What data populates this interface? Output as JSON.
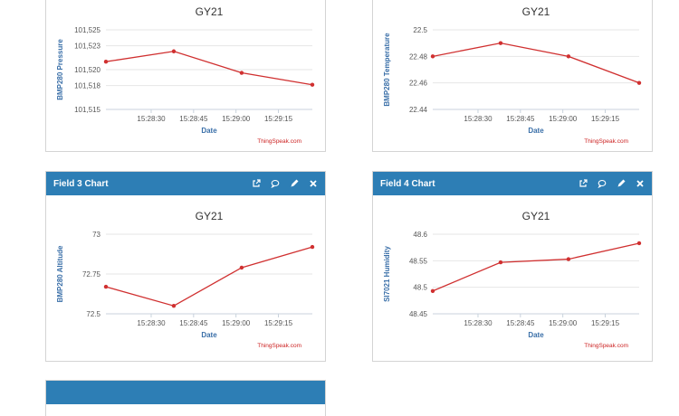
{
  "panels": [
    {
      "header": "",
      "chart_data": {
        "type": "line",
        "title": "GY21",
        "xlabel": "Date",
        "ylabel": "BMP280 Pressure",
        "ylim": [
          101515,
          101525
        ],
        "yticks": [
          101515,
          101518,
          101520,
          101523,
          101525
        ],
        "ytick_labels": [
          "101,515",
          "101,518",
          "101,520",
          "101,523",
          "101,525"
        ],
        "xlim": [
          "15:28:14",
          "15:29:27"
        ],
        "xticks": [
          "15:28:30",
          "15:28:45",
          "15:29:00",
          "15:29:15"
        ],
        "series": [
          {
            "x": [
              "15:28:14",
              "15:28:38",
              "15:29:02",
              "15:29:27"
            ],
            "values": [
              101521.0,
              101522.3,
              101519.6,
              101518.1
            ]
          }
        ],
        "credit": "ThingSpeak.com"
      }
    },
    {
      "header": "",
      "chart_data": {
        "type": "line",
        "title": "GY21",
        "xlabel": "Date",
        "ylabel": "BMP280 Temperature",
        "ylim": [
          22.44,
          22.5
        ],
        "yticks": [
          22.44,
          22.46,
          22.48,
          22.5
        ],
        "ytick_labels": [
          "22.44",
          "22.46",
          "22.48",
          "22.5"
        ],
        "xlim": [
          "15:28:14",
          "15:29:27"
        ],
        "xticks": [
          "15:28:30",
          "15:28:45",
          "15:29:00",
          "15:29:15"
        ],
        "series": [
          {
            "x": [
              "15:28:14",
              "15:28:38",
              "15:29:02",
              "15:29:27"
            ],
            "values": [
              22.48,
              22.49,
              22.48,
              22.46
            ]
          }
        ],
        "credit": "ThingSpeak.com"
      }
    },
    {
      "header": "Field 3 Chart",
      "chart_data": {
        "type": "line",
        "title": "GY21",
        "xlabel": "Date",
        "ylabel": "BMP280 Altitude",
        "ylim": [
          72.5,
          73
        ],
        "yticks": [
          72.5,
          72.75,
          73
        ],
        "ytick_labels": [
          "72.5",
          "72.75",
          "73"
        ],
        "xlim": [
          "15:28:14",
          "15:29:27"
        ],
        "xticks": [
          "15:28:30",
          "15:28:45",
          "15:29:00",
          "15:29:15"
        ],
        "series": [
          {
            "x": [
              "15:28:14",
              "15:28:38",
              "15:29:02",
              "15:29:27"
            ],
            "values": [
              72.67,
              72.55,
              72.79,
              72.92
            ]
          }
        ],
        "credit": "ThingSpeak.com"
      }
    },
    {
      "header": "Field 4 Chart",
      "chart_data": {
        "type": "line",
        "title": "GY21",
        "xlabel": "Date",
        "ylabel": "SI7021 Humidity",
        "ylim": [
          48.45,
          48.6
        ],
        "yticks": [
          48.45,
          48.5,
          48.55,
          48.6
        ],
        "ytick_labels": [
          "48.45",
          "48.5",
          "48.55",
          "48.6"
        ],
        "xlim": [
          "15:28:14",
          "15:29:27"
        ],
        "xticks": [
          "15:28:30",
          "15:28:45",
          "15:29:00",
          "15:29:15"
        ],
        "series": [
          {
            "x": [
              "15:28:14",
              "15:28:38",
              "15:29:02",
              "15:29:27"
            ],
            "values": [
              48.493,
              48.547,
              48.553,
              48.583
            ]
          }
        ],
        "credit": "ThingSpeak.com"
      }
    },
    {
      "header": "",
      "chart_data": null
    }
  ],
  "theme": {
    "header_bg": "#2d7eb5",
    "line_color": "#d03030",
    "axis_title_color": "#3a6fa8",
    "credit_color": "#cc2222"
  },
  "icons": [
    "external-link-icon",
    "comment-icon",
    "pencil-icon",
    "close-icon"
  ]
}
